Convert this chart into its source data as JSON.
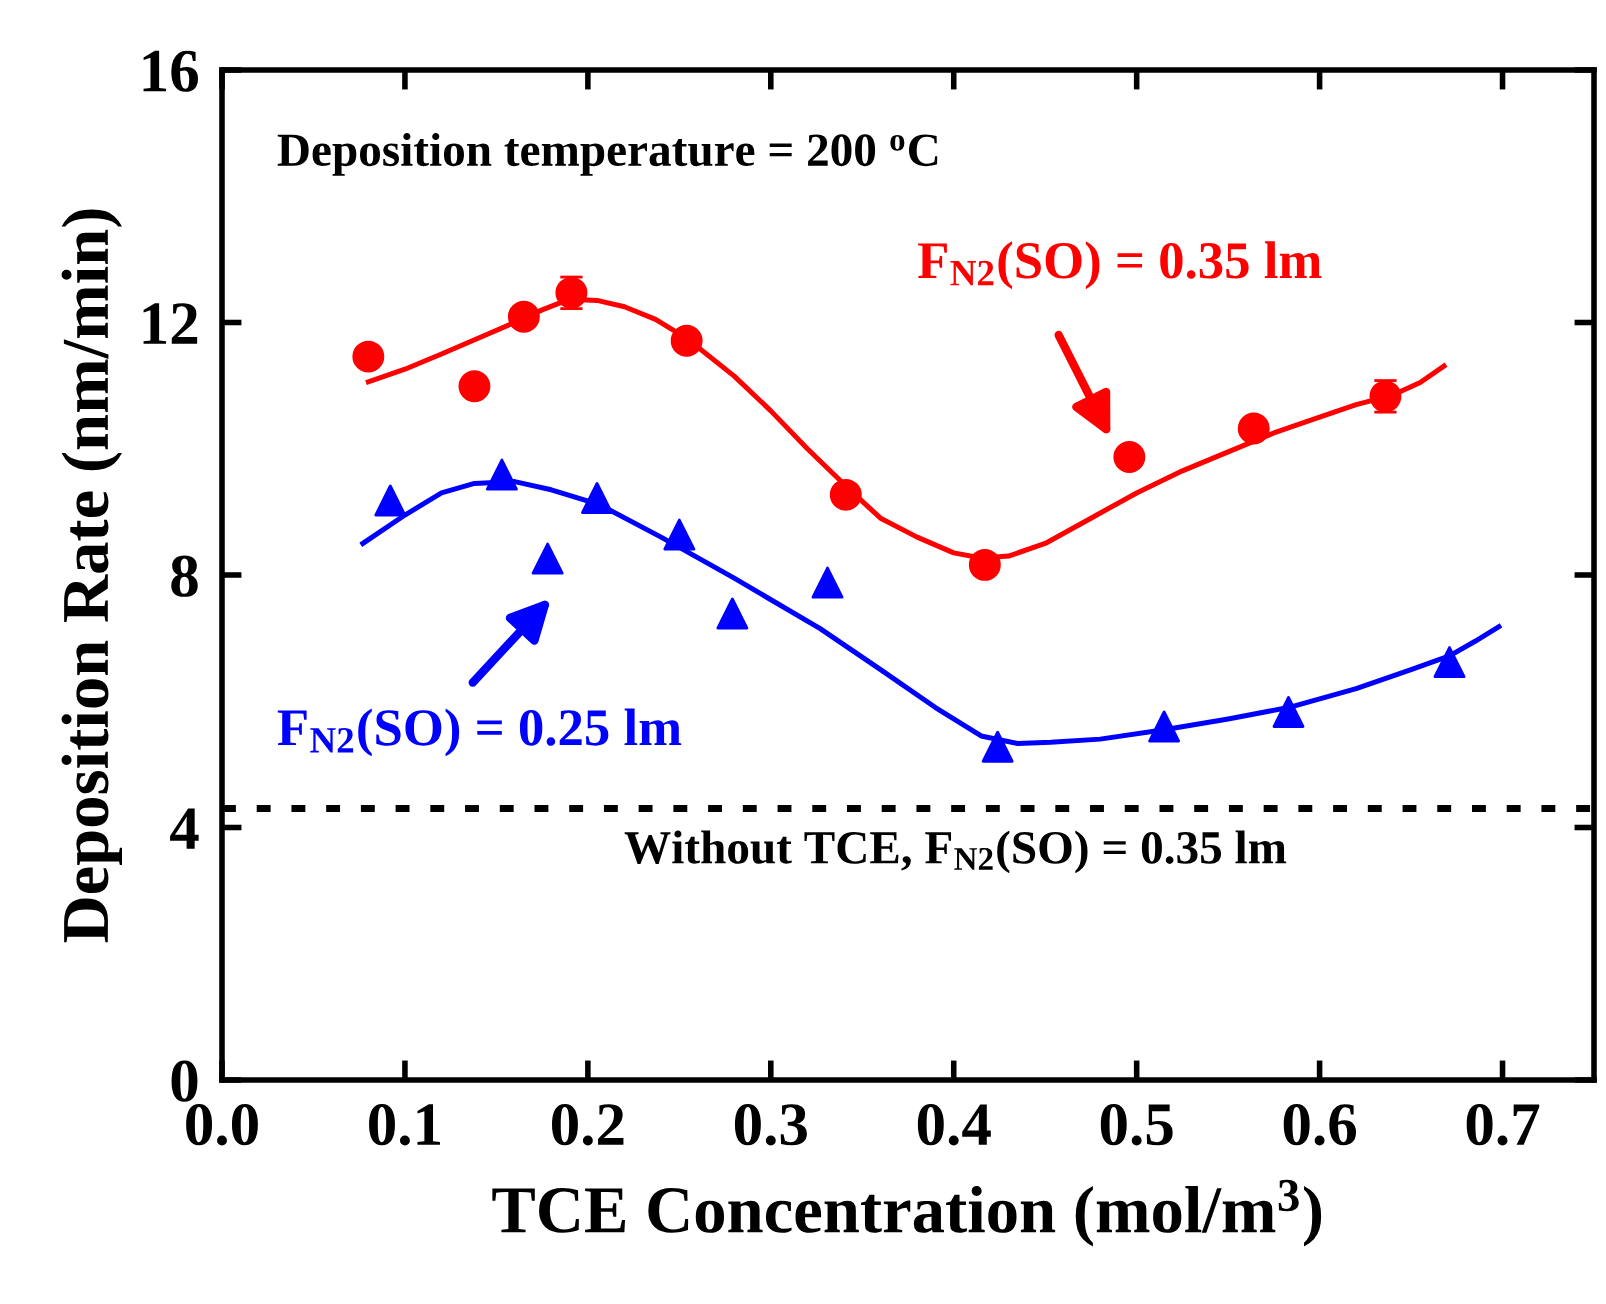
{
  "chart_data": {
    "type": "scatter",
    "xlabel": "TCE Concentration (mol/m$^{3}$)",
    "ylabel": "Deposition Rate (nm/min)",
    "xlim": [
      0,
      0.75
    ],
    "ylim": [
      0,
      16
    ],
    "xticks": [
      {
        "value": 0,
        "label": "0.0"
      },
      0.1,
      0.2,
      0.3,
      0.4,
      0.5,
      0.6,
      0.7
    ],
    "yticks": [
      0,
      4,
      8,
      12,
      16
    ],
    "grid": false,
    "annotations": [
      "Deposition temperature = 200 $^{o}$C",
      "Without TCE, F$_{N2}$(SO) = 0.35 lm"
    ],
    "ref_lines": [
      {
        "axis": "y",
        "value": 4.3,
        "color": "#000000",
        "line_style": "dotted"
      }
    ],
    "series": [
      {
        "name": "F$_{N2}$(SO) = 0.35 lm",
        "marker": "circle",
        "color": "#ff0000",
        "x": [
          0.08,
          0.138,
          0.165,
          0.191,
          0.254,
          0.341,
          0.417,
          0.496,
          0.564,
          0.636
        ],
        "values": [
          11.46,
          10.99,
          12.09,
          12.47,
          11.71,
          9.27,
          8.16,
          9.87,
          10.32,
          10.83
        ],
        "errors": [
          null,
          null,
          0.15,
          0.25,
          null,
          0.1,
          null,
          0.12,
          null,
          0.25
        ]
      },
      {
        "type": "line",
        "color": "#ff0000",
        "marker": "none",
        "line_style": "solid",
        "x": [
          0.08,
          0.1,
          0.12,
          0.14,
          0.16,
          0.175,
          0.19,
          0.205,
          0.22,
          0.237,
          0.254,
          0.28,
          0.3,
          0.32,
          0.345,
          0.36,
          0.38,
          0.4,
          0.415,
          0.43,
          0.45,
          0.475,
          0.5,
          0.525,
          0.55,
          0.575,
          0.6,
          0.62,
          0.64,
          0.655,
          0.668
        ],
        "values": [
          11.06,
          11.26,
          11.5,
          11.75,
          12.0,
          12.2,
          12.37,
          12.35,
          12.25,
          12.05,
          11.75,
          11.15,
          10.6,
          10.0,
          9.3,
          8.9,
          8.6,
          8.35,
          8.27,
          8.3,
          8.5,
          8.9,
          9.3,
          9.65,
          9.95,
          10.25,
          10.5,
          10.7,
          10.85,
          11.05,
          11.31
        ]
      },
      {
        "name": "F$_{N2}$(SO) = 0.25 lm",
        "marker": "triangle",
        "color": "#0000ff",
        "x": [
          0.092,
          0.153,
          0.178,
          0.205,
          0.25,
          0.279,
          0.331,
          0.424,
          0.515,
          0.583,
          0.671
        ],
        "values": [
          9.18,
          9.59,
          8.26,
          9.22,
          8.64,
          7.39,
          7.88,
          5.28,
          5.6,
          5.83,
          6.62
        ]
      },
      {
        "type": "line",
        "color": "#0000ff",
        "marker": "none",
        "line_style": "solid",
        "x": [
          0.077,
          0.1,
          0.12,
          0.138,
          0.16,
          0.18,
          0.206,
          0.24,
          0.28,
          0.327,
          0.36,
          0.39,
          0.415,
          0.435,
          0.453,
          0.48,
          0.515,
          0.55,
          0.583,
          0.62,
          0.65,
          0.671,
          0.685,
          0.698
        ],
        "values": [
          8.5,
          8.95,
          9.3,
          9.45,
          9.48,
          9.35,
          9.12,
          8.6,
          7.95,
          7.15,
          6.5,
          5.9,
          5.45,
          5.33,
          5.35,
          5.4,
          5.55,
          5.72,
          5.9,
          6.2,
          6.5,
          6.72,
          6.95,
          7.18
        ]
      }
    ]
  }
}
